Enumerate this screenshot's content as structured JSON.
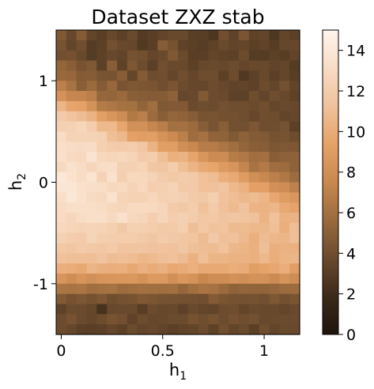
{
  "chart_data": {
    "type": "heatmap",
    "title": "Dataset ZXZ stab",
    "xlabel": "h",
    "xlabel_sub": "1",
    "ylabel": "h",
    "ylabel_sub": "2",
    "x_range": [
      -0.025,
      1.175
    ],
    "y_range": [
      1.5,
      -1.5
    ],
    "y_direction": "down",
    "x_ticks": [
      {
        "value": 0,
        "label": "0"
      },
      {
        "value": 0.5,
        "label": "0.5"
      },
      {
        "value": 1,
        "label": "1"
      }
    ],
    "y_ticks": [
      {
        "value": -1,
        "label": "-1"
      },
      {
        "value": 0,
        "label": "0"
      },
      {
        "value": 1,
        "label": "1"
      }
    ],
    "colorbar": {
      "range": [
        0,
        15
      ],
      "ticks": [
        "0",
        "2",
        "4",
        "6",
        "8",
        "10",
        "12",
        "14"
      ],
      "colormap": [
        "#1e140b",
        "#3c2a19",
        "#6a4a2d",
        "#9a6a3d",
        "#c88850",
        "#e6a268",
        "#f0c29c",
        "#f8dcc4",
        "#fff5ee"
      ]
    },
    "grid": false,
    "n_cols": 24,
    "n_rows": 30,
    "layout": "two-phase band: high values (about 11-14) for h2 roughly between -1 and 0.9, narrowing toward larger h1; low values (about 2-5) near h2 = -1.5 and h2 = 1.3",
    "values": [
      [
        4.59,
        3.65,
        4.73,
        3.47,
        3.08,
        3.66,
        3.16,
        3.73,
        2.88,
        3.1,
        3.37,
        3.69,
        3.68,
        3.08,
        3.07,
        2.55,
        4.01,
        3.31,
        4.4,
        3.31,
        3.44,
        2.61,
        3.48,
        3.15
      ],
      [
        4.26,
        3.45,
        3.97,
        2.93,
        3.23,
        4.09,
        3.68,
        3.6,
        2.76,
        3.1,
        4.85,
        4.22,
        3.32,
        3.14,
        2.98,
        3.3,
        3.73,
        3.39,
        3.53,
        3.14,
        3.36,
        3.0,
        3.55,
        3.66
      ],
      [
        4.07,
        4.17,
        3.69,
        2.91,
        3.28,
        3.61,
        3.39,
        4.19,
        4.03,
        3.53,
        3.75,
        4.62,
        3.79,
        3.1,
        3.09,
        3.47,
        3.31,
        3.2,
        3.86,
        2.91,
        2.87,
        3.21,
        3.01,
        3.38
      ],
      [
        5.34,
        4.95,
        4.26,
        4.56,
        3.18,
        4.9,
        3.31,
        4.48,
        3.87,
        3.12,
        3.99,
        3.75,
        3.69,
        3.19,
        3.65,
        3.74,
        3.61,
        3.84,
        3.54,
        3.69,
        3.67,
        3.39,
        3.47,
        2.91
      ],
      [
        5.56,
        5.47,
        4.74,
        4.79,
        4.35,
        4.28,
        4.93,
        3.5,
        4.75,
        3.91,
        3.98,
        3.51,
        4.0,
        3.53,
        3.91,
        3.9,
        3.21,
        3.87,
        2.7,
        3.26,
        3.69,
        3.15,
        3.49,
        3.02
      ],
      [
        7.02,
        6.16,
        4.97,
        5.62,
        4.75,
        5.48,
        4.31,
        4.52,
        4.44,
        4.36,
        3.97,
        4.4,
        3.85,
        3.66,
        3.59,
        3.86,
        3.66,
        3.34,
        3.39,
        3.25,
        3.88,
        3.52,
        4.11,
        3.39
      ],
      [
        8.23,
        7.37,
        7.32,
        6.93,
        5.47,
        5.32,
        5.61,
        4.97,
        4.88,
        4.75,
        4.82,
        5.1,
        3.56,
        3.71,
        4.66,
        3.83,
        3.74,
        3.24,
        3.26,
        3.96,
        3.43,
        3.94,
        3.69,
        3.24
      ],
      [
        10.46,
        9.51,
        9.32,
        8.21,
        6.66,
        6.43,
        6.13,
        6.04,
        5.29,
        5.89,
        4.58,
        4.71,
        4.64,
        3.77,
        3.95,
        3.84,
        4.1,
        3.93,
        3.96,
        3.79,
        4.0,
        3.57,
        3.73,
        3.62
      ],
      [
        11.86,
        11.39,
        10.94,
        10.39,
        9.16,
        8.5,
        7.89,
        6.56,
        6.93,
        5.66,
        4.9,
        5.39,
        5.18,
        4.87,
        4.27,
        4.31,
        4.11,
        4.11,
        3.93,
        3.59,
        3.93,
        3.91,
        3.47,
        3.56
      ],
      [
        12.33,
        12.36,
        12.73,
        12.07,
        10.76,
        10.7,
        9.59,
        8.13,
        8.13,
        7.38,
        6.87,
        6.0,
        6.08,
        5.68,
        4.87,
        4.33,
        4.91,
        4.08,
        4.06,
        4.48,
        3.96,
        3.96,
        4.19,
        3.12
      ],
      [
        13.13,
        12.46,
        12.48,
        12.51,
        12.3,
        11.12,
        10.67,
        9.24,
        9.07,
        9.12,
        8.3,
        7.67,
        6.95,
        5.77,
        6.14,
        5.22,
        5.19,
        4.64,
        5.12,
        4.74,
        4.66,
        4.22,
        4.26,
        3.92
      ],
      [
        13.29,
        13.16,
        13.07,
        13.15,
        12.23,
        11.94,
        11.91,
        12.04,
        11.58,
        10.38,
        9.14,
        9.06,
        8.01,
        7.48,
        6.77,
        6.71,
        6.31,
        5.9,
        5.31,
        5.0,
        4.85,
        4.48,
        4.54,
        4.51
      ],
      [
        13.41,
        13.01,
        12.86,
        13.72,
        12.79,
        12.62,
        12.82,
        12.52,
        11.91,
        12.02,
        11.06,
        10.17,
        10.32,
        9.58,
        8.5,
        7.71,
        7.77,
        6.8,
        6.53,
        5.9,
        6.0,
        4.91,
        5.12,
        5.12
      ],
      [
        12.9,
        13.51,
        13.16,
        12.71,
        13.12,
        13.25,
        12.32,
        12.36,
        12.55,
        11.61,
        11.48,
        12.03,
        11.05,
        10.45,
        9.81,
        9.5,
        8.8,
        8.46,
        7.34,
        6.21,
        6.65,
        5.84,
        5.69,
        5.18
      ],
      [
        14.03,
        13.54,
        13.13,
        13.63,
        12.43,
        13.51,
        12.2,
        12.88,
        12.82,
        12.47,
        11.97,
        11.69,
        11.98,
        11.85,
        11.18,
        10.97,
        10.15,
        9.81,
        8.87,
        7.99,
        7.5,
        6.98,
        6.53,
        5.73
      ],
      [
        13.91,
        13.87,
        13.48,
        13.36,
        13.26,
        12.86,
        12.95,
        12.46,
        12.84,
        12.1,
        12.2,
        12.46,
        11.8,
        11.85,
        11.17,
        11.19,
        11.5,
        10.71,
        10.23,
        9.16,
        9.18,
        8.11,
        7.84,
        7.09
      ],
      [
        13.3,
        13.95,
        13.52,
        13.07,
        12.88,
        13.54,
        12.53,
        12.38,
        12.39,
        12.77,
        12.31,
        12.43,
        12.27,
        11.9,
        11.75,
        12.19,
        11.28,
        10.99,
        10.67,
        10.87,
        10.56,
        9.69,
        9.0,
        8.54
      ],
      [
        13.04,
        13.3,
        13.38,
        13.3,
        13.19,
        12.82,
        12.69,
        12.96,
        12.99,
        12.9,
        12.65,
        11.92,
        11.77,
        12.04,
        11.2,
        11.92,
        11.22,
        10.82,
        11.33,
        10.45,
        10.3,
        10.55,
        9.79,
        9.39
      ],
      [
        13.03,
        12.74,
        13.19,
        13.29,
        13.36,
        12.93,
        13.52,
        12.8,
        12.68,
        12.09,
        12.69,
        12.07,
        12.27,
        11.99,
        11.52,
        11.66,
        11.43,
        11.56,
        11.36,
        11.27,
        10.43,
        11.2,
        10.23,
        10.39
      ],
      [
        12.79,
        12.63,
        12.47,
        12.58,
        12.5,
        12.23,
        11.76,
        12.32,
        12.21,
        12.01,
        11.83,
        11.87,
        12.19,
        11.07,
        11.65,
        11.3,
        11.4,
        10.83,
        10.87,
        10.69,
        10.65,
        11.11,
        10.15,
        11.04
      ],
      [
        12.34,
        12.06,
        11.93,
        12.54,
        12.15,
        12.04,
        12.02,
        12.01,
        11.83,
        11.58,
        11.95,
        11.79,
        11.58,
        11.44,
        10.92,
        11.79,
        11.13,
        11.2,
        10.78,
        10.15,
        10.92,
        10.62,
        10.54,
        11.09
      ],
      [
        11.68,
        11.59,
        11.91,
        11.72,
        11.62,
        11.88,
        11.41,
        11.45,
        11.47,
        11.28,
        11.41,
        11.17,
        11.57,
        11.12,
        10.96,
        10.89,
        11.31,
        10.59,
        10.47,
        10.2,
        11.07,
        10.16,
        10.36,
        10.28
      ],
      [
        11.2,
        11.05,
        11.12,
        11.03,
        11.42,
        10.93,
        11.12,
        10.94,
        10.61,
        10.81,
        11.06,
        11.22,
        10.91,
        10.28,
        11.08,
        10.46,
        10.51,
        10.29,
        10.4,
        10.22,
        10.69,
        10.05,
        10.42,
        10.51
      ],
      [
        10.11,
        10.01,
        9.71,
        10.48,
        10.16,
        10.09,
        10.14,
        9.74,
        10.2,
        9.97,
        10.2,
        9.66,
        9.97,
        10.19,
        9.8,
        9.79,
        9.78,
        10.07,
        9.9,
        9.13,
        9.42,
        9.67,
        10.09,
        9.05
      ],
      [
        8.41,
        7.94,
        8.41,
        8.09,
        8.42,
        8.47,
        8.54,
        8.62,
        8.24,
        8.77,
        8.76,
        8.1,
        8.62,
        8.3,
        7.53,
        7.87,
        7.89,
        8.14,
        8.02,
        8.24,
        8.21,
        7.73,
        8.36,
        7.85
      ],
      [
        6.36,
        6.23,
        6.35,
        5.89,
        6.04,
        6.17,
        5.75,
        5.85,
        6.02,
        5.97,
        5.89,
        6.01,
        5.47,
        5.94,
        6.28,
        6.15,
        5.66,
        5.21,
        5.33,
        5.3,
        5.28,
        5.46,
        5.73,
        5.69
      ],
      [
        4.67,
        4.24,
        4.48,
        4.21,
        4.52,
        3.94,
        4.18,
        4.3,
        4.61,
        4.46,
        4.27,
        4.19,
        4.15,
        4.11,
        3.99,
        4.76,
        4.37,
        4.24,
        4.15,
        4.21,
        4.06,
        4.53,
        4.13,
        4.38
      ],
      [
        3.27,
        3.86,
        3.78,
        3.55,
        2.33,
        3.62,
        3.72,
        3.76,
        3.04,
        3.77,
        3.64,
        3.67,
        3.25,
        3.75,
        3.48,
        3.4,
        3.88,
        3.94,
        3.45,
        3.74,
        3.7,
        3.71,
        3.44,
        3.68
      ],
      [
        3.82,
        4.23,
        3.76,
        3.5,
        3.86,
        4.3,
        4.06,
        3.3,
        3.85,
        3.58,
        3.65,
        3.8,
        3.79,
        4.22,
        3.96,
        4.22,
        3.84,
        4.17,
        3.93,
        4.09,
        3.72,
        3.73,
        3.8,
        3.77
      ],
      [
        3.86,
        3.6,
        3.12,
        3.1,
        3.18,
        3.54,
        3.22,
        3.79,
        3.43,
        3.66,
        3.37,
        3.13,
        3.33,
        3.46,
        3.82,
        3.28,
        3.97,
        3.48,
        3.8,
        3.14,
        3.96,
        3.44,
        3.74,
        3.71
      ]
    ]
  }
}
